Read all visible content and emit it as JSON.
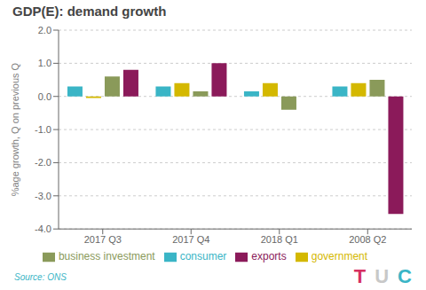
{
  "chart_data": {
    "type": "bar",
    "title": "GDP(E): demand growth",
    "y_label": "%age growth, Q on previous Q",
    "categories": [
      "2017 Q3",
      "2017 Q4",
      "2018 Q1",
      "2008 Q2"
    ],
    "series": [
      {
        "name": "consumer",
        "color": "#3ab5c6",
        "values": [
          0.3,
          0.3,
          0.15,
          0.3
        ]
      },
      {
        "name": "government",
        "color": "#d4b800",
        "values": [
          -0.05,
          0.4,
          0.4,
          0.4
        ]
      },
      {
        "name": "business investment",
        "color": "#8a9a5a",
        "values": [
          0.6,
          0.15,
          -0.4,
          0.5
        ]
      },
      {
        "name": "exports",
        "color": "#8b1a5a",
        "values": [
          0.8,
          1.0,
          0.0,
          -3.55
        ]
      }
    ],
    "ylim": [
      -4.0,
      2.0
    ],
    "yticks": [
      {
        "value": -4.0,
        "label": "-4.0"
      },
      {
        "value": -3.0,
        "label": "-3.0"
      },
      {
        "value": -2.0,
        "label": "-2.0"
      },
      {
        "value": -1.0,
        "label": "-1.0"
      },
      {
        "value": 0.0,
        "label": "0.0"
      },
      {
        "value": 1.0,
        "label": "1.0"
      },
      {
        "value": 2.0,
        "label": "2.0"
      }
    ],
    "grid": true,
    "legend": "bottom",
    "annotations": [
      {
        "text": "Source: ONS",
        "color": "#3ab5c6"
      },
      {
        "text": "T",
        "color": "#d63060"
      },
      {
        "text": "U",
        "color": "#c8c8c8"
      },
      {
        "text": "C",
        "color": "#3ab5c6"
      }
    ]
  }
}
